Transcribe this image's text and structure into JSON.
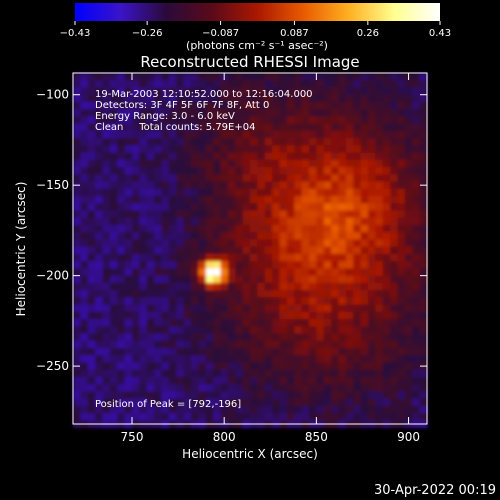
{
  "chart_data": {
    "type": "heatmap",
    "title": "Reconstructed RHESSI Image",
    "xlabel": "Heliocentric X (arcsec)",
    "ylabel": "Heliocentric Y (arcsec)",
    "xlim": [
      718,
      910
    ],
    "ylim": [
      -282,
      -88
    ],
    "x_ticks": [
      750,
      800,
      850,
      900
    ],
    "y_ticks": [
      -100,
      -150,
      -200,
      -250
    ],
    "grid": false,
    "colorbar": {
      "min": -0.43,
      "max": 0.43,
      "tick_labels": [
        "-0.43",
        "-0.26",
        "-0.087",
        "0.087",
        "0.26",
        "0.43"
      ],
      "unit_label": "(photons cm⁻² s⁻¹ asec⁻²)",
      "colormap": [
        "#0000ff",
        "#3a14c8",
        "#2a0a3a",
        "#5a0a1a",
        "#aa1800",
        "#e85a00",
        "#ffb020",
        "#ffff90",
        "#ffffff"
      ]
    },
    "annotations": [
      "19-Mar-2003 12:10:52.000 to 12:16:04.000",
      "Detectors: 3F 4F 5F 6F 7F 8F, Att 0",
      "Energy Range: 3.0 - 6.0 keV",
      "Clean     Total counts: 5.79E+04"
    ],
    "peak": {
      "label": "Position of Peak = [792,-196]",
      "x": 792,
      "y": -196
    },
    "sources": [
      {
        "x": 792,
        "y": -196,
        "sigma_x": 5,
        "sigma_y": 5,
        "amplitude": 0.43
      },
      {
        "x": 870,
        "y": -160,
        "sigma_x": 30,
        "sigma_y": 35,
        "amplitude": 0.24
      },
      {
        "x": 830,
        "y": -180,
        "sigma_x": 30,
        "sigma_y": 40,
        "amplitude": 0.16
      },
      {
        "x": 860,
        "y": -230,
        "sigma_x": 35,
        "sigma_y": 30,
        "amplitude": 0.1
      },
      {
        "x": 810,
        "y": -120,
        "sigma_x": 25,
        "sigma_y": 25,
        "amplitude": 0.08
      }
    ],
    "background": -0.25,
    "bright_region": {
      "x_from": 800,
      "y_above": -290,
      "level": 0.1
    }
  },
  "footer": {
    "timestamp": "30-Apr-2022 00:19"
  }
}
